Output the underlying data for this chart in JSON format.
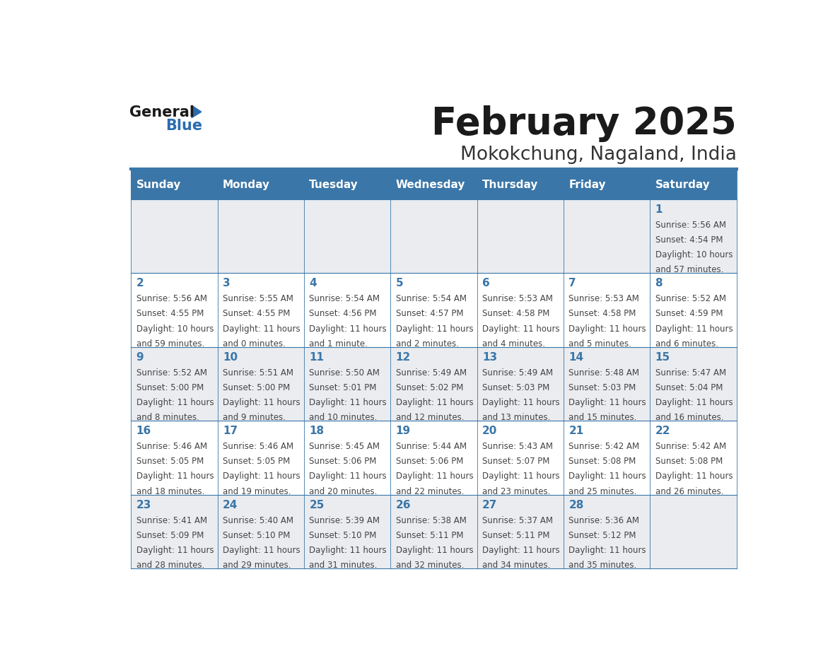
{
  "title": "February 2025",
  "subtitle": "Mokokchung, Nagaland, India",
  "header_color": "#3A76A8",
  "header_text_color": "#FFFFFF",
  "days_of_week": [
    "Sunday",
    "Monday",
    "Tuesday",
    "Wednesday",
    "Thursday",
    "Friday",
    "Saturday"
  ],
  "background_color": "#FFFFFF",
  "cell_bg_even": "#EAECF0",
  "border_color": "#3A76A8",
  "day_number_color": "#3A76A8",
  "info_text_color": "#444444",
  "calendar": [
    [
      null,
      null,
      null,
      null,
      null,
      null,
      {
        "day": 1,
        "sunrise": "5:56 AM",
        "sunset": "4:54 PM",
        "daylight": "10 hours and 57 minutes."
      }
    ],
    [
      {
        "day": 2,
        "sunrise": "5:56 AM",
        "sunset": "4:55 PM",
        "daylight": "10 hours and 59 minutes."
      },
      {
        "day": 3,
        "sunrise": "5:55 AM",
        "sunset": "4:55 PM",
        "daylight": "11 hours and 0 minutes."
      },
      {
        "day": 4,
        "sunrise": "5:54 AM",
        "sunset": "4:56 PM",
        "daylight": "11 hours and 1 minute."
      },
      {
        "day": 5,
        "sunrise": "5:54 AM",
        "sunset": "4:57 PM",
        "daylight": "11 hours and 2 minutes."
      },
      {
        "day": 6,
        "sunrise": "5:53 AM",
        "sunset": "4:58 PM",
        "daylight": "11 hours and 4 minutes."
      },
      {
        "day": 7,
        "sunrise": "5:53 AM",
        "sunset": "4:58 PM",
        "daylight": "11 hours and 5 minutes."
      },
      {
        "day": 8,
        "sunrise": "5:52 AM",
        "sunset": "4:59 PM",
        "daylight": "11 hours and 6 minutes."
      }
    ],
    [
      {
        "day": 9,
        "sunrise": "5:52 AM",
        "sunset": "5:00 PM",
        "daylight": "11 hours and 8 minutes."
      },
      {
        "day": 10,
        "sunrise": "5:51 AM",
        "sunset": "5:00 PM",
        "daylight": "11 hours and 9 minutes."
      },
      {
        "day": 11,
        "sunrise": "5:50 AM",
        "sunset": "5:01 PM",
        "daylight": "11 hours and 10 minutes."
      },
      {
        "day": 12,
        "sunrise": "5:49 AM",
        "sunset": "5:02 PM",
        "daylight": "11 hours and 12 minutes."
      },
      {
        "day": 13,
        "sunrise": "5:49 AM",
        "sunset": "5:03 PM",
        "daylight": "11 hours and 13 minutes."
      },
      {
        "day": 14,
        "sunrise": "5:48 AM",
        "sunset": "5:03 PM",
        "daylight": "11 hours and 15 minutes."
      },
      {
        "day": 15,
        "sunrise": "5:47 AM",
        "sunset": "5:04 PM",
        "daylight": "11 hours and 16 minutes."
      }
    ],
    [
      {
        "day": 16,
        "sunrise": "5:46 AM",
        "sunset": "5:05 PM",
        "daylight": "11 hours and 18 minutes."
      },
      {
        "day": 17,
        "sunrise": "5:46 AM",
        "sunset": "5:05 PM",
        "daylight": "11 hours and 19 minutes."
      },
      {
        "day": 18,
        "sunrise": "5:45 AM",
        "sunset": "5:06 PM",
        "daylight": "11 hours and 20 minutes."
      },
      {
        "day": 19,
        "sunrise": "5:44 AM",
        "sunset": "5:06 PM",
        "daylight": "11 hours and 22 minutes."
      },
      {
        "day": 20,
        "sunrise": "5:43 AM",
        "sunset": "5:07 PM",
        "daylight": "11 hours and 23 minutes."
      },
      {
        "day": 21,
        "sunrise": "5:42 AM",
        "sunset": "5:08 PM",
        "daylight": "11 hours and 25 minutes."
      },
      {
        "day": 22,
        "sunrise": "5:42 AM",
        "sunset": "5:08 PM",
        "daylight": "11 hours and 26 minutes."
      }
    ],
    [
      {
        "day": 23,
        "sunrise": "5:41 AM",
        "sunset": "5:09 PM",
        "daylight": "11 hours and 28 minutes."
      },
      {
        "day": 24,
        "sunrise": "5:40 AM",
        "sunset": "5:10 PM",
        "daylight": "11 hours and 29 minutes."
      },
      {
        "day": 25,
        "sunrise": "5:39 AM",
        "sunset": "5:10 PM",
        "daylight": "11 hours and 31 minutes."
      },
      {
        "day": 26,
        "sunrise": "5:38 AM",
        "sunset": "5:11 PM",
        "daylight": "11 hours and 32 minutes."
      },
      {
        "day": 27,
        "sunrise": "5:37 AM",
        "sunset": "5:11 PM",
        "daylight": "11 hours and 34 minutes."
      },
      {
        "day": 28,
        "sunrise": "5:36 AM",
        "sunset": "5:12 PM",
        "daylight": "11 hours and 35 minutes."
      },
      null
    ]
  ]
}
